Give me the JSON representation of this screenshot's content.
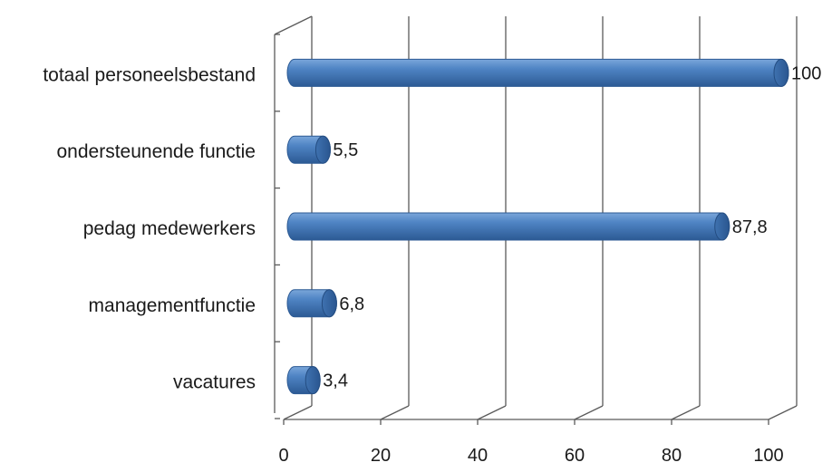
{
  "chart_data": {
    "type": "bar",
    "orientation": "horizontal",
    "style": "3d-cylinder",
    "categories": [
      "vacatures",
      "managementfunctie",
      "pedag medewerkers",
      "ondersteunende functie",
      "totaal personeelsbestand"
    ],
    "values": [
      3.4,
      6.8,
      87.8,
      5.5,
      100
    ],
    "data_labels": [
      "3,4",
      "6,8",
      "87,8",
      "5,5",
      "100"
    ],
    "xlim": [
      0,
      100
    ],
    "xticks": [
      0,
      20,
      40,
      60,
      80,
      100
    ],
    "xtick_labels": [
      "0",
      "20",
      "40",
      "60",
      "80",
      "100"
    ],
    "grid": true,
    "legend": "none",
    "bar_color": "#4a7ebb",
    "bar_color_dark": "#2c5a94",
    "bar_color_light": "#7aa6da",
    "axis_color": "#5a5a5a"
  }
}
